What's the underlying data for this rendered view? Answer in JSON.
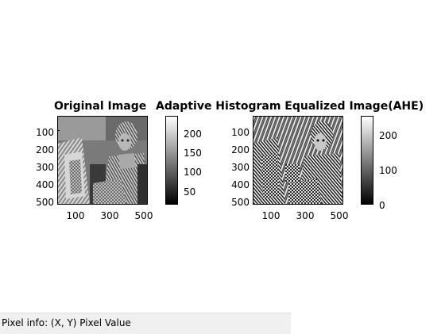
{
  "figure": {
    "left_axes": {
      "title": "Original Image",
      "y_ticks": [
        "100",
        "200",
        "300",
        "400",
        "500"
      ],
      "x_ticks": [
        "100",
        "300",
        "500"
      ],
      "colorbar_ticks": [
        "200",
        "150",
        "100",
        "50"
      ]
    },
    "right_axes": {
      "title": "Adaptive Histogram Equalized Image(AHE)",
      "y_ticks": [
        "100",
        "200",
        "300",
        "400",
        "500"
      ],
      "x_ticks": [
        "100",
        "300",
        "500"
      ],
      "colorbar_ticks": [
        "200",
        "100",
        "0"
      ]
    },
    "colormap": "gray"
  },
  "statusbar": {
    "pixel_info_label": "Pixel info: (X, Y)  Pixel Value"
  }
}
